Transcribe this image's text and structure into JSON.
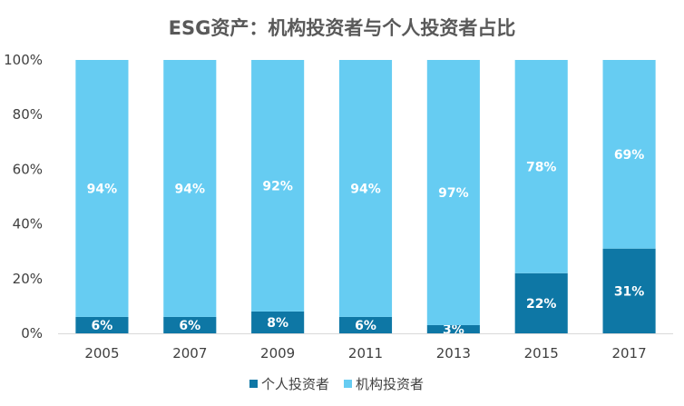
{
  "chart_data": {
    "type": "bar",
    "stacked": true,
    "title": "ESG资产：机构投资者与个人投资者占比",
    "categories": [
      "2005",
      "2007",
      "2009",
      "2011",
      "2013",
      "2015",
      "2017"
    ],
    "series": [
      {
        "name": "个人投资者",
        "values": [
          6,
          6,
          8,
          6,
          3,
          22,
          31
        ],
        "labels": [
          "6%",
          "6%",
          "8%",
          "6%",
          "3%",
          "22%",
          "31%"
        ],
        "color": "#0E77A5"
      },
      {
        "name": "机构投资者",
        "values": [
          94,
          94,
          92,
          94,
          97,
          78,
          69
        ],
        "labels": [
          "94%",
          "94%",
          "92%",
          "94%",
          "97%",
          "78%",
          "69%"
        ],
        "color": "#66CCF2"
      }
    ],
    "ylim": [
      0,
      100
    ],
    "yticks": [
      "0%",
      "20%",
      "40%",
      "60%",
      "80%",
      "100%"
    ],
    "grid": false,
    "legend": "bottom"
  }
}
